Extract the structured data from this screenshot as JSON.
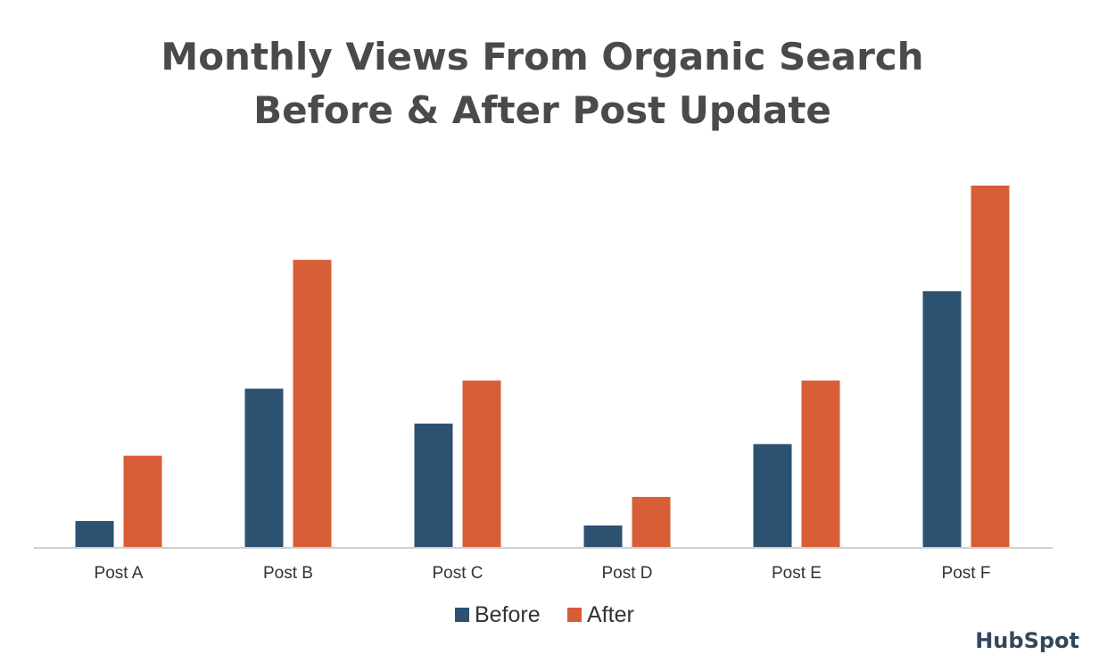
{
  "chart_data": {
    "type": "bar",
    "title": [
      "Monthly Views From Organic Search",
      "Before & After Post Update"
    ],
    "categories": [
      "Post A",
      "Post B",
      "Post C",
      "Post D",
      "Post E",
      "Post F"
    ],
    "series": [
      {
        "name": "Before",
        "color": "#2d5170",
        "values": [
          30,
          178,
          139,
          25,
          116,
          287
        ]
      },
      {
        "name": "After",
        "color": "#d85e37",
        "values": [
          103,
          322,
          187,
          57,
          187,
          405
        ]
      }
    ],
    "ylim": [
      0,
      420
    ],
    "grid": false,
    "legend": "bottom-center"
  },
  "brand": {
    "name": "HubSpot",
    "text_color": "#33475b",
    "accent_color": "#f47b50"
  }
}
